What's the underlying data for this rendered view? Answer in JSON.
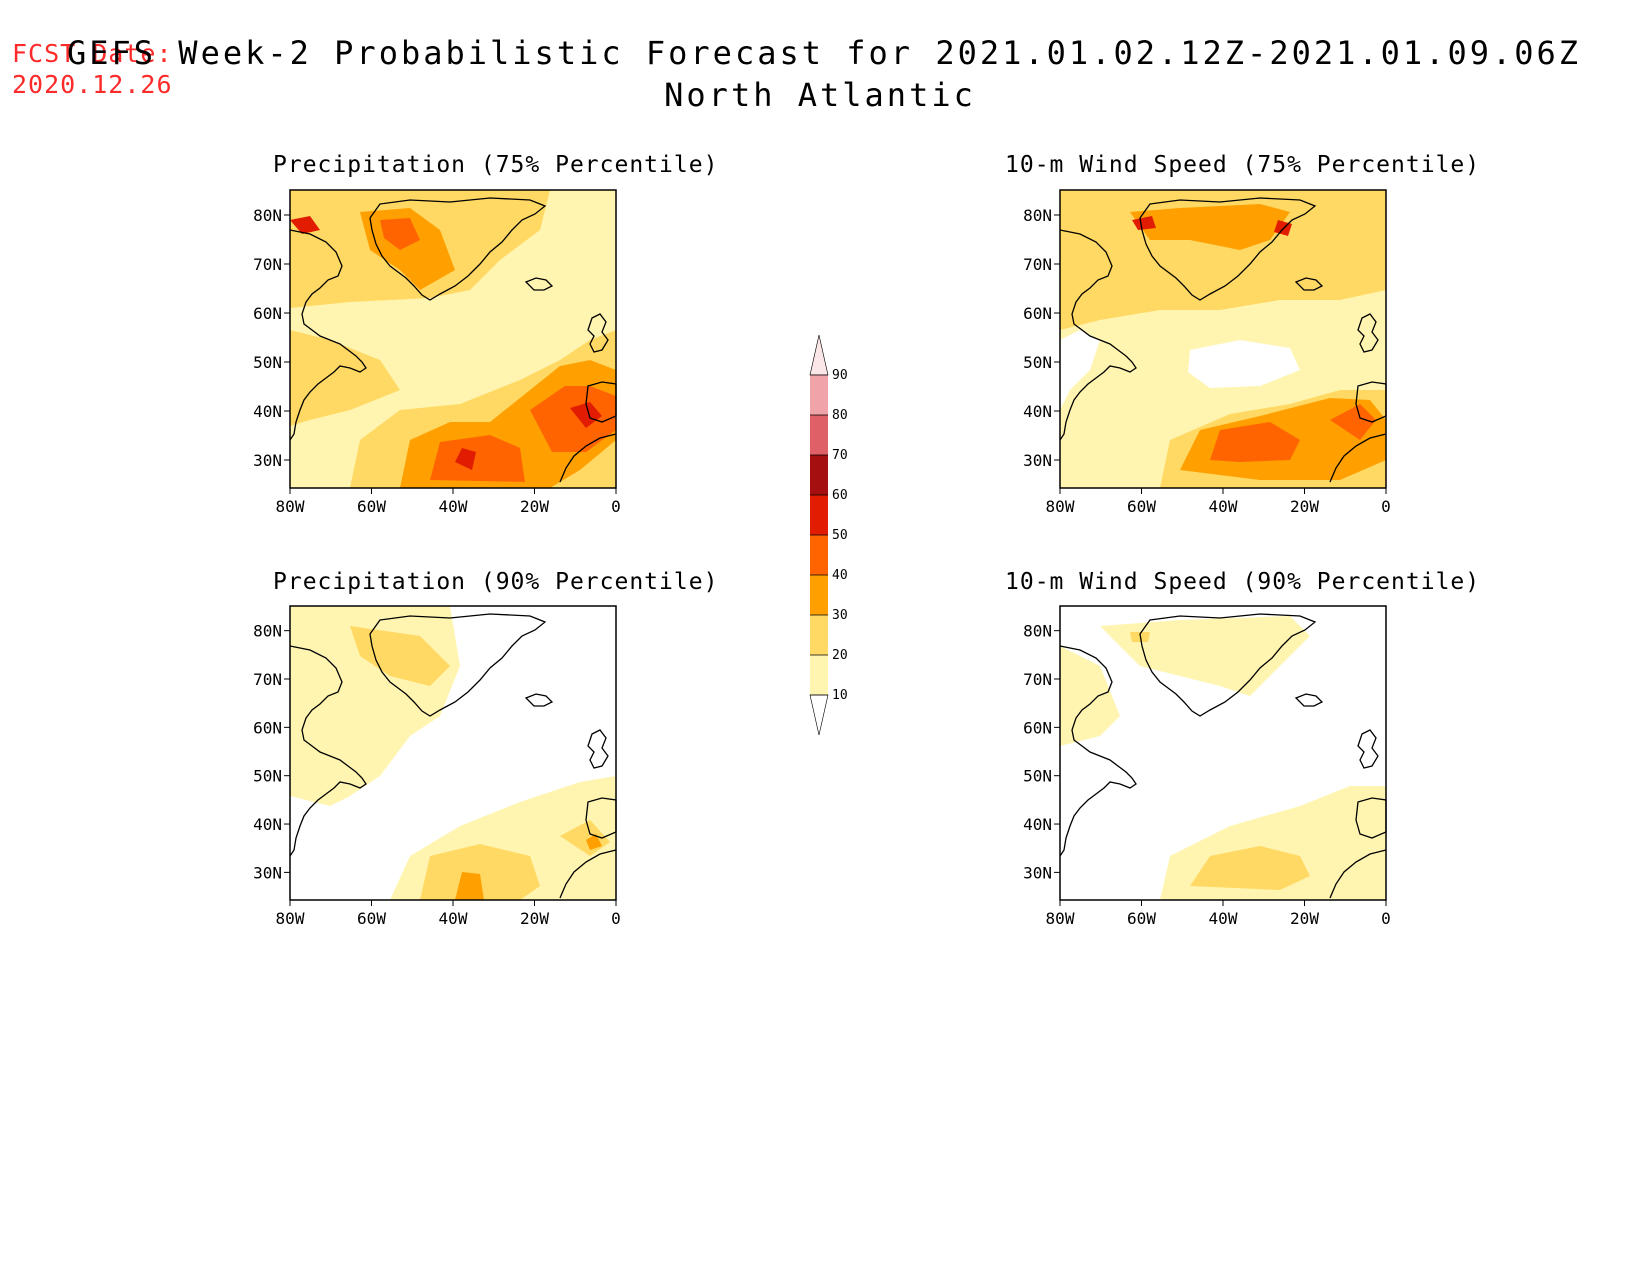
{
  "header": {
    "fcst_label": "FCST Date:",
    "fcst_date": "2020.12.26",
    "title": "GEFS Week-2 Probabilistic Forecast for 2021.01.02.12Z-2021.01.09.06Z",
    "subtitle": "North Atlantic"
  },
  "axes": {
    "lat_ticks": [
      "80N",
      "70N",
      "60N",
      "50N",
      "40N",
      "30N"
    ],
    "lon_ticks": [
      "80W",
      "60W",
      "40W",
      "20W",
      "0"
    ]
  },
  "colorbar": {
    "levels": [
      "90",
      "80",
      "70",
      "60",
      "50",
      "40",
      "30",
      "20",
      "10"
    ],
    "colors": [
      "#f0a3a8",
      "#e06068",
      "#a50f0f",
      "#e21c00",
      "#ff6400",
      "#ffa000",
      "#ffd963",
      "#fff5b0"
    ]
  },
  "panels": [
    {
      "id": "precip-75",
      "title": "Precipitation (75% Percentile)"
    },
    {
      "id": "wind-75",
      "title": "10-m Wind Speed (75% Percentile)"
    },
    {
      "id": "precip-90",
      "title": "Precipitation (90% Percentile)"
    },
    {
      "id": "wind-90",
      "title": "10-m Wind Speed (90% Percentile)"
    }
  ],
  "legend_colors": {
    "c10": "#fff5b0",
    "c20": "#ffd963",
    "c30": "#ffa000",
    "c40": "#ff6400",
    "c50": "#e21c00",
    "c60": "#a50f0f"
  }
}
